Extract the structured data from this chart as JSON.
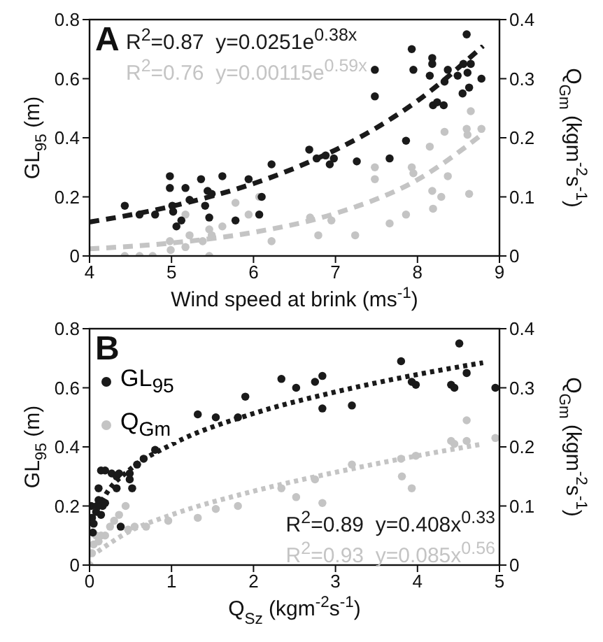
{
  "chart_data": [
    {
      "type": "scatter",
      "xlabel": "Wind speed at brink (ms$^{-1}$)",
      "ylabel": "GL$_{95}$ (m)",
      "y2label": "Q$_{Gm}$ (kgm$^{-2}$s$^{-1}$)",
      "xlim": [
        4,
        9
      ],
      "xticks": [
        4,
        5,
        6,
        7,
        8,
        9
      ],
      "ylim": [
        0,
        0.8
      ],
      "yticks": [
        0,
        0.2,
        0.4,
        0.6,
        0.8
      ],
      "y2lim": [
        0,
        0.4
      ],
      "y2ticks": [
        0,
        0.1,
        0.2,
        0.3,
        0.4
      ],
      "grid": false,
      "legend": false,
      "marker": "circle",
      "annotations": [
        "A",
        "R$^{2}$=0.87  y=0.0251e$^{0.38x}$",
        "R$^{2}$=0.76  y=0.00115e$^{0.59x}$"
      ],
      "series": [
        {
          "color": "#1a1a1a",
          "x": [
            4.43,
            4.61,
            4.8,
            4.98,
            4.98,
            5.01,
            5.02,
            5.06,
            5.12,
            5.17,
            5.22,
            5.36,
            5.41,
            5.44,
            5.46,
            5.49,
            5.62,
            5.78,
            5.94,
            6.07,
            6.1,
            6.22,
            6.68,
            6.77,
            6.88,
            6.93,
            6.98,
            7.26,
            7.48,
            7.48,
            7.66,
            7.86,
            7.93,
            7.95,
            8.15,
            8.18,
            8.18,
            8.19,
            8.24,
            8.32,
            8.33,
            8.37,
            8.49,
            8.55,
            8.56,
            8.6,
            8.61,
            8.63,
            8.65,
            8.78
          ],
          "values": [
            0.17,
            0.14,
            0.14,
            0.27,
            0.23,
            0.17,
            0.15,
            0.1,
            0.12,
            0.23,
            0.19,
            0.26,
            0.17,
            0.22,
            0.13,
            0.21,
            0.27,
            0.12,
            0.26,
            0.14,
            0.2,
            0.31,
            0.36,
            0.33,
            0.34,
            0.31,
            0.33,
            0.32,
            0.63,
            0.54,
            0.33,
            0.39,
            0.7,
            0.63,
            0.61,
            0.67,
            0.65,
            0.51,
            0.52,
            0.51,
            0.59,
            0.63,
            0.61,
            0.55,
            0.65,
            0.75,
            0.62,
            0.57,
            0.65,
            0.6
          ]
        },
        {
          "color": "#c4c4c4",
          "axis": "y2",
          "x": [
            4.43,
            4.61,
            4.77,
            4.98,
            4.99,
            5.17,
            5.17,
            5.22,
            5.38,
            5.46,
            5.46,
            5.49,
            5.62,
            5.78,
            5.94,
            6.07,
            6.22,
            6.69,
            6.79,
            6.95,
            7.24,
            7.48,
            7.48,
            7.66,
            7.86,
            7.93,
            7.95,
            8.15,
            8.18,
            8.19,
            8.33,
            8.29,
            8.37,
            8.6,
            8.61,
            8.63,
            8.65,
            8.78
          ],
          "values": [
            0,
            0,
            0,
            0.025,
            0.01,
            0.07,
            0.015,
            0.035,
            0.025,
            0.045,
            0,
            0.035,
            0.05,
            0.09,
            0.07,
            0.1,
            0.025,
            0.065,
            0.035,
            0.06,
            0.035,
            0.15,
            0.13,
            0.055,
            0.07,
            0.15,
            0.14,
            0.185,
            0.11,
            0.08,
            0.21,
            0.1,
            0.135,
            0.215,
            0.205,
            0.105,
            0.245,
            0.215
          ]
        },
        {
          "type": "line",
          "marker": "none",
          "color": "#1a1a1a",
          "line_style": "dashed",
          "x": [
            4,
            4.5,
            5,
            5.5,
            6,
            6.5,
            7,
            7.5,
            8,
            8.8
          ],
          "values": [
            0.115,
            0.139,
            0.168,
            0.203,
            0.245,
            0.297,
            0.359,
            0.434,
            0.525,
            0.711
          ]
        },
        {
          "type": "line",
          "marker": "none",
          "color": "#c4c4c4",
          "line_style": "dashed",
          "axis": "y2",
          "x": [
            4,
            5,
            6,
            7,
            8,
            8.8
          ],
          "values": [
            0.012,
            0.022,
            0.04,
            0.072,
            0.129,
            0.207
          ]
        }
      ]
    },
    {
      "type": "scatter",
      "xlabel": "Q$_{Sz}$ (kgm$^{-2}$s$^{-1}$)",
      "ylabel": "GL$_{95}$ (m)",
      "y2label": "Q$_{Gm}$ (kgm$^{-2}$s$^{-1}$)",
      "xlim": [
        0,
        5
      ],
      "xticks": [
        0,
        1,
        2,
        3,
        4,
        5
      ],
      "ylim": [
        0,
        0.8
      ],
      "yticks": [
        0,
        0.2,
        0.4,
        0.6,
        0.8
      ],
      "y2lim": [
        0,
        0.4
      ],
      "y2ticks": [
        0,
        0.1,
        0.2,
        0.3,
        0.4
      ],
      "grid": false,
      "legend": "top left",
      "marker": "circle",
      "annotations": [
        "B",
        "R$^{2}$=0.89  y=0.408x$^{0.33}$",
        "R$^{2}$=0.93  y=0.085x$^{0.56}$"
      ],
      "series": [
        {
          "name": "GL$_{95}$",
          "color": "#1a1a1a",
          "x": [
            0.02,
            0.03,
            0.04,
            0.05,
            0.08,
            0.09,
            0.11,
            0.14,
            0.16,
            0.19,
            0.11,
            0.14,
            0.19,
            0.27,
            0.33,
            0.36,
            0.33,
            0.38,
            0.49,
            0.49,
            0.52,
            0.58,
            0.66,
            0.8,
            1.32,
            1.54,
            1.81,
            1.9,
            2.34,
            2.52,
            2.75,
            2.84,
            2.84,
            3.2,
            3.8,
            3.93,
            3.98,
            4.41,
            4.45,
            4.51,
            4.6,
            4.95
          ],
          "values": [
            0.2,
            0.16,
            0.11,
            0.14,
            0.18,
            0.2,
            0.22,
            0.17,
            0.2,
            0.21,
            0.26,
            0.32,
            0.32,
            0.31,
            0.3,
            0.31,
            0.26,
            0.13,
            0.29,
            0.31,
            0.26,
            0.34,
            0.36,
            0.39,
            0.51,
            0.5,
            0.5,
            0.57,
            0.63,
            0.6,
            0.62,
            0.64,
            0.53,
            0.54,
            0.69,
            0.62,
            0.61,
            0.61,
            0.6,
            0.75,
            0.65,
            0.6
          ]
        },
        {
          "name": "Q$_{Gm}$",
          "color": "#c4c4c4",
          "axis": "y2",
          "x": [
            0,
            0.03,
            0.05,
            0.08,
            0.11,
            0.14,
            0.19,
            0.25,
            0.3,
            0.36,
            0.44,
            0.47,
            0.55,
            0.69,
            0.96,
            1.32,
            1.54,
            1.81,
            2.34,
            2.52,
            2.75,
            2.84,
            3.2,
            3.8,
            3.81,
            3.93,
            3.98,
            4.41,
            4.45,
            4.6,
            4.6,
            4.95
          ],
          "values": [
            0,
            0.02,
            0.035,
            0.05,
            0.04,
            0.05,
            0.05,
            0.065,
            0.075,
            0.085,
            0.1,
            0.06,
            0.065,
            0.065,
            0.075,
            0.08,
            0.095,
            0.1,
            0.13,
            0.115,
            0.145,
            0.105,
            0.17,
            0.18,
            0.15,
            0.13,
            0.185,
            0.21,
            0.205,
            0.245,
            0.21,
            0.215
          ]
        },
        {
          "type": "line",
          "marker": "none",
          "color": "#1a1a1a",
          "line_style": "dotted",
          "x": [
            0.1,
            0.2,
            0.5,
            1,
            2,
            3,
            4,
            4.8
          ],
          "values": [
            0.19,
            0.24,
            0.325,
            0.408,
            0.513,
            0.586,
            0.645,
            0.685
          ]
        },
        {
          "type": "line",
          "marker": "none",
          "color": "#c4c4c4",
          "line_style": "dotted",
          "axis": "y2",
          "x": [
            0.1,
            0.5,
            1,
            2,
            3,
            4,
            4.8
          ],
          "values": [
            0.023,
            0.058,
            0.085,
            0.125,
            0.157,
            0.185,
            0.205
          ]
        }
      ]
    }
  ]
}
